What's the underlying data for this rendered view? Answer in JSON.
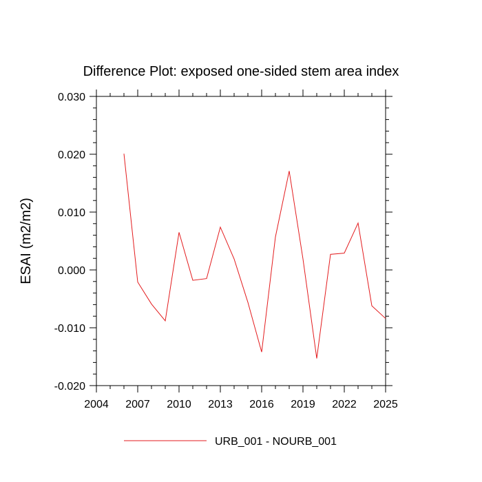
{
  "chart_data": {
    "type": "line",
    "title": "Difference Plot: exposed one-sided stem area index",
    "xlabel": "",
    "ylabel": "ESAI  (m2/m2)",
    "xlim": [
      2004,
      2025
    ],
    "ylim": [
      -0.02,
      0.03
    ],
    "x_ticks": [
      "2004",
      "2007",
      "2010",
      "2013",
      "2016",
      "2019",
      "2022",
      "2025"
    ],
    "y_ticks": [
      "-0.020",
      "-0.010",
      "0.000",
      "0.010",
      "0.020",
      "0.030"
    ],
    "grid": false,
    "legend_position": "bottom",
    "series": [
      {
        "name": "URB_001 - NOURB_001",
        "color": "#e31a1c",
        "x": [
          2006,
          2007,
          2008,
          2009,
          2010,
          2011,
          2012,
          2013,
          2014,
          2015,
          2016,
          2017,
          2018,
          2019,
          2020,
          2021,
          2022,
          2023,
          2024,
          2025
        ],
        "values": [
          0.0201,
          -0.0021,
          -0.0059,
          -0.0088,
          0.0065,
          -0.0018,
          -0.0015,
          0.0074,
          0.0019,
          -0.0056,
          -0.0142,
          0.0057,
          0.0171,
          0.0019,
          -0.0153,
          0.0027,
          0.0029,
          0.0081,
          -0.0062,
          -0.0084
        ]
      }
    ]
  }
}
